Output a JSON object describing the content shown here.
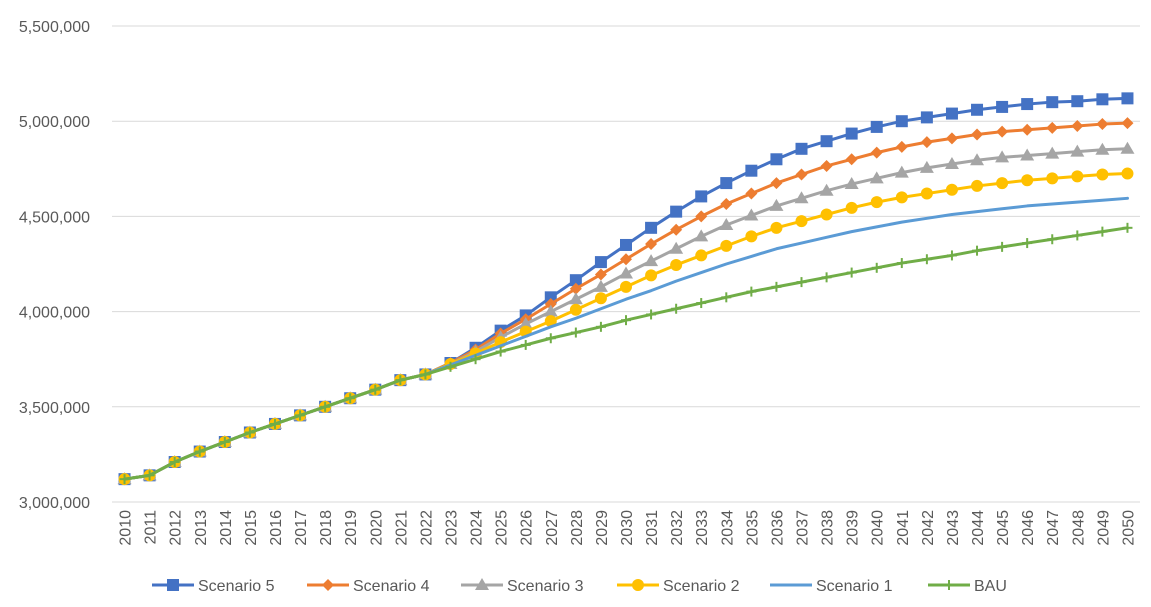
{
  "chart_data": {
    "type": "line",
    "title": "",
    "xlabel": "",
    "ylabel": "",
    "ylim": [
      3000000,
      5500000
    ],
    "y_ticks": [
      "3,000,000",
      "3,500,000",
      "4,000,000",
      "4,500,000",
      "5,000,000",
      "5,500,000"
    ],
    "y_tick_values": [
      3000000,
      3500000,
      4000000,
      4500000,
      5000000,
      5500000
    ],
    "grid": "horizontal",
    "legend_position": "bottom",
    "categories": [
      "2010",
      "2011",
      "2012",
      "2013",
      "2014",
      "2015",
      "2016",
      "2017",
      "2018",
      "2019",
      "2020",
      "2021",
      "2022",
      "2023",
      "2024",
      "2025",
      "2026",
      "2027",
      "2028",
      "2029",
      "2030",
      "2031",
      "2032",
      "2033",
      "2034",
      "2035",
      "2036",
      "2037",
      "2038",
      "2039",
      "2040",
      "2041",
      "2042",
      "2043",
      "2044",
      "2045",
      "2046",
      "2047",
      "2048",
      "2049",
      "2050"
    ],
    "series": [
      {
        "name": "Scenario 5",
        "color": "#4472C4",
        "marker": "square",
        "values": [
          3120000,
          3140000,
          3210000,
          3265000,
          3315000,
          3365000,
          3410000,
          3455000,
          3500000,
          3545000,
          3590000,
          3640000,
          3670000,
          3730000,
          3810000,
          3900000,
          3980000,
          4075000,
          4165000,
          4260000,
          4350000,
          4440000,
          4525000,
          4605000,
          4675000,
          4740000,
          4800000,
          4855000,
          4895000,
          4935000,
          4970000,
          5000000,
          5020000,
          5040000,
          5060000,
          5075000,
          5090000,
          5100000,
          5105000,
          5115000,
          5120000
        ]
      },
      {
        "name": "Scenario 4",
        "color": "#ED7D31",
        "marker": "diamond",
        "values": [
          3120000,
          3140000,
          3210000,
          3265000,
          3315000,
          3365000,
          3410000,
          3455000,
          3500000,
          3545000,
          3590000,
          3640000,
          3670000,
          3730000,
          3800000,
          3885000,
          3960000,
          4040000,
          4120000,
          4195000,
          4275000,
          4355000,
          4430000,
          4500000,
          4565000,
          4620000,
          4675000,
          4720000,
          4765000,
          4800000,
          4835000,
          4865000,
          4890000,
          4910000,
          4930000,
          4945000,
          4955000,
          4965000,
          4975000,
          4985000,
          4990000
        ]
      },
      {
        "name": "Scenario 3",
        "color": "#A5A5A5",
        "marker": "triangle",
        "values": [
          3120000,
          3140000,
          3210000,
          3265000,
          3315000,
          3365000,
          3410000,
          3455000,
          3500000,
          3545000,
          3590000,
          3640000,
          3670000,
          3725000,
          3790000,
          3865000,
          3935000,
          4000000,
          4065000,
          4130000,
          4200000,
          4265000,
          4330000,
          4395000,
          4455000,
          4505000,
          4555000,
          4595000,
          4635000,
          4670000,
          4700000,
          4730000,
          4755000,
          4775000,
          4795000,
          4810000,
          4820000,
          4830000,
          4840000,
          4850000,
          4855000
        ]
      },
      {
        "name": "Scenario 2",
        "color": "#FFC000",
        "marker": "circle",
        "values": [
          3120000,
          3140000,
          3210000,
          3265000,
          3315000,
          3365000,
          3410000,
          3455000,
          3500000,
          3545000,
          3590000,
          3640000,
          3670000,
          3725000,
          3780000,
          3840000,
          3895000,
          3950000,
          4010000,
          4070000,
          4130000,
          4190000,
          4245000,
          4295000,
          4345000,
          4395000,
          4440000,
          4475000,
          4510000,
          4545000,
          4575000,
          4600000,
          4620000,
          4640000,
          4660000,
          4675000,
          4690000,
          4700000,
          4710000,
          4720000,
          4725000
        ]
      },
      {
        "name": "Scenario 1",
        "color": "#5B9BD5",
        "marker": "none",
        "values": [
          3120000,
          3140000,
          3210000,
          3265000,
          3315000,
          3365000,
          3410000,
          3455000,
          3500000,
          3545000,
          3590000,
          3640000,
          3670000,
          3720000,
          3770000,
          3820000,
          3870000,
          3920000,
          3965000,
          4015000,
          4065000,
          4110000,
          4160000,
          4205000,
          4250000,
          4290000,
          4330000,
          4360000,
          4390000,
          4420000,
          4445000,
          4470000,
          4490000,
          4510000,
          4525000,
          4540000,
          4555000,
          4565000,
          4575000,
          4585000,
          4595000
        ]
      },
      {
        "name": "BAU",
        "color": "#70AD47",
        "marker": "plus",
        "values": [
          3120000,
          3140000,
          3210000,
          3265000,
          3315000,
          3365000,
          3410000,
          3455000,
          3500000,
          3545000,
          3590000,
          3640000,
          3670000,
          3710000,
          3750000,
          3790000,
          3825000,
          3860000,
          3890000,
          3920000,
          3955000,
          3985000,
          4015000,
          4045000,
          4075000,
          4105000,
          4130000,
          4155000,
          4180000,
          4205000,
          4230000,
          4255000,
          4275000,
          4295000,
          4320000,
          4340000,
          4360000,
          4380000,
          4400000,
          4420000,
          4440000
        ]
      }
    ]
  }
}
